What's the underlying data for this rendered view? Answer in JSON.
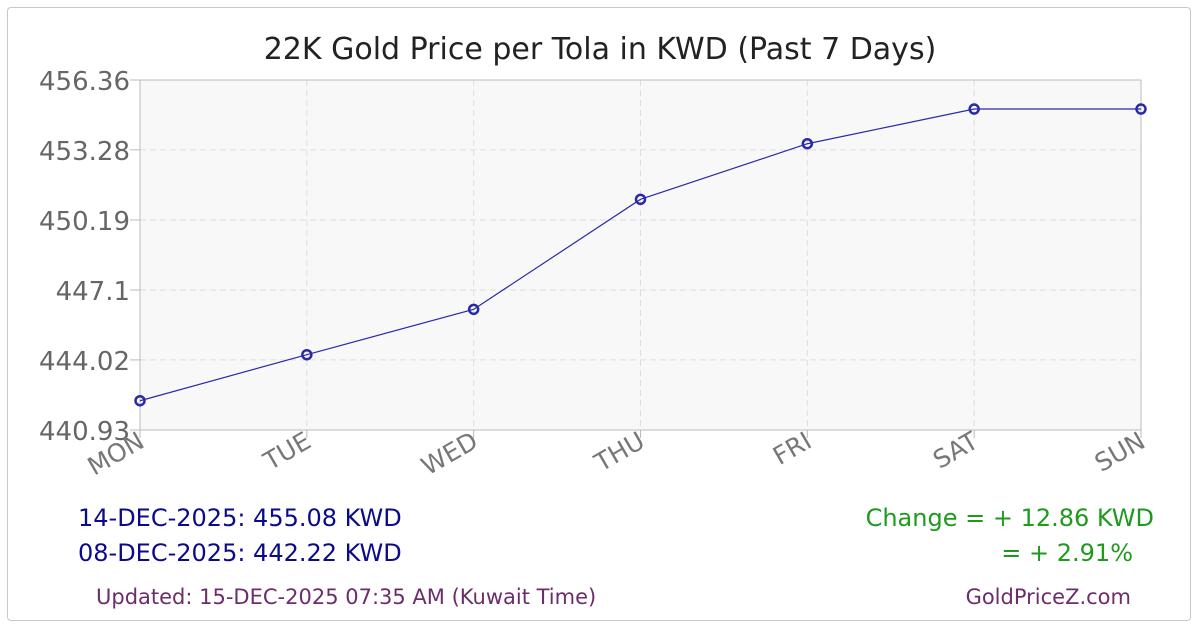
{
  "chart_data": {
    "type": "line",
    "title": "22K Gold Price per Tola in KWD (Past 7 Days)",
    "categories": [
      "MON",
      "TUE",
      "WED",
      "THU",
      "FRI",
      "SAT",
      "SUN"
    ],
    "series": [
      {
        "values": [
          442.22,
          444.25,
          446.25,
          451.1,
          453.55,
          455.08,
          455.08
        ]
      }
    ],
    "y_ticks": [
      "456.36",
      "453.28",
      "450.19",
      "447.1",
      "444.02",
      "440.93"
    ],
    "ylim": [
      440.93,
      456.36
    ],
    "grid": true,
    "line_color": "#2a2aa8"
  },
  "summary": {
    "latest": "14-DEC-2025: 455.08 KWD",
    "earliest": "08-DEC-2025: 442.22 KWD",
    "change_abs": "Change = + 12.86 KWD",
    "change_pct": "= + 2.91%"
  },
  "footer": {
    "updated": "Updated: 15-DEC-2025 07:35 AM (Kuwait Time)",
    "site": "GoldPriceZ.com"
  }
}
